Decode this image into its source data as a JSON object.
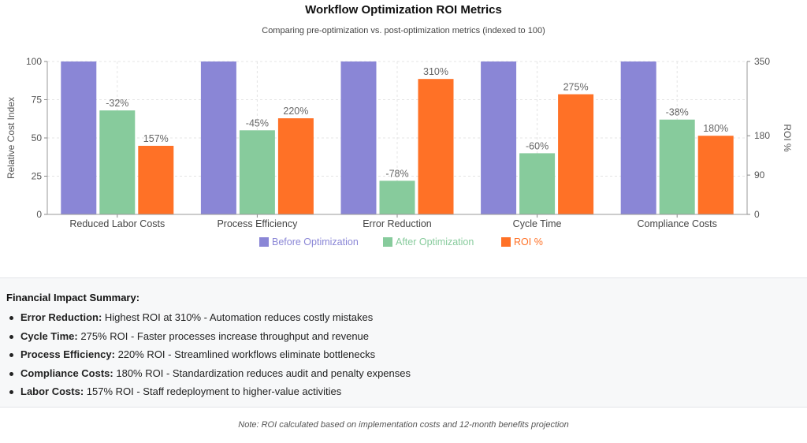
{
  "chart_data": {
    "type": "bar",
    "title": "Workflow Optimization ROI Metrics",
    "subtitle": "Comparing pre-optimization vs. post-optimization metrics (indexed to 100)",
    "categories": [
      "Reduced Labor Costs",
      "Process Efficiency",
      "Error Reduction",
      "Cycle Time",
      "Compliance Costs"
    ],
    "series": [
      {
        "name": "Before Optimization",
        "axis": "left",
        "color": "#8a86d6",
        "values": [
          100,
          100,
          100,
          100,
          100
        ],
        "labels": [
          "",
          "",
          "",
          "",
          ""
        ]
      },
      {
        "name": "After Optimization",
        "axis": "left",
        "color": "#87cb9c",
        "values": [
          68,
          55,
          22,
          40,
          62
        ],
        "labels": [
          "-32%",
          "-45%",
          "-78%",
          "-60%",
          "-38%"
        ]
      },
      {
        "name": "ROI %",
        "axis": "right",
        "color": "#ff7126",
        "values": [
          157,
          220,
          310,
          275,
          180
        ],
        "labels": [
          "157%",
          "220%",
          "310%",
          "275%",
          "180%"
        ]
      }
    ],
    "ylabel": "Relative Cost Index",
    "ylim": [
      0,
      100
    ],
    "yticks": [
      0,
      25,
      50,
      75,
      100
    ],
    "y2label": "ROI %",
    "y2lim": [
      0,
      350
    ],
    "y2ticks": [
      0,
      90,
      180,
      350
    ],
    "grid": true,
    "legend": "bottom-center"
  },
  "summary": {
    "heading": "Financial Impact Summary:",
    "items": [
      {
        "bold": "Error Reduction:",
        "text": " Highest ROI at 310% - Automation reduces costly mistakes"
      },
      {
        "bold": "Cycle Time:",
        "text": " 275% ROI - Faster processes increase throughput and revenue"
      },
      {
        "bold": "Process Efficiency:",
        "text": " 220% ROI - Streamlined workflows eliminate bottlenecks"
      },
      {
        "bold": "Compliance Costs:",
        "text": " 180% ROI - Standardization reduces audit and penalty expenses"
      },
      {
        "bold": "Labor Costs:",
        "text": " 157% ROI - Staff redeployment to higher-value activities"
      }
    ]
  },
  "footnote": "Note: ROI calculated based on implementation costs and 12-month benefits projection"
}
